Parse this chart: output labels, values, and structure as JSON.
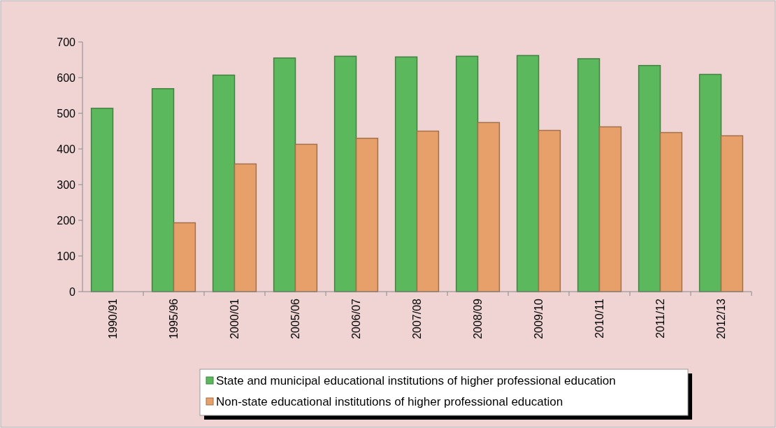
{
  "chart_data": {
    "type": "bar",
    "categories": [
      "1990/91",
      "1995/96",
      "2000/01",
      "2005/06",
      "2006/07",
      "2007/08",
      "2008/09",
      "2009/10",
      "2010/11",
      "2011/12",
      "2012/13"
    ],
    "series": [
      {
        "name": "State and municipal educational institutions of higher professional education",
        "color": "#5cb85c",
        "values": [
          514,
          569,
          607,
          655,
          660,
          658,
          660,
          662,
          653,
          634,
          609
        ]
      },
      {
        "name": "Non-state educational institutions of higher professional education",
        "color": "#e8a06a",
        "values": [
          null,
          193,
          358,
          413,
          430,
          450,
          474,
          452,
          462,
          446,
          437
        ]
      }
    ],
    "ylim": [
      0,
      700
    ],
    "yticks": [
      0,
      100,
      200,
      300,
      400,
      500,
      600,
      700
    ],
    "grid": false,
    "legend": "bottom"
  }
}
